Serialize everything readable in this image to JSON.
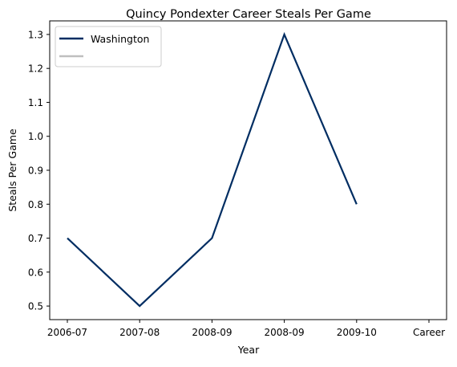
{
  "chart_data": {
    "type": "line",
    "title": "Quincy Pondexter Career Steals Per Game",
    "xlabel": "Year",
    "ylabel": "Steals Per Game",
    "categories": [
      "2006-07",
      "2007-08",
      "2008-09",
      "2008-09",
      "2009-10",
      "Career"
    ],
    "x": [
      0,
      1,
      2,
      3,
      4,
      5
    ],
    "x_tick_positions": [
      0,
      1,
      2,
      3,
      4,
      5
    ],
    "ylim": [
      0.46,
      1.34
    ],
    "yticks": [
      0.5,
      0.6,
      0.7,
      0.8,
      0.9,
      1.0,
      1.1,
      1.2,
      1.3
    ],
    "ytick_labels": [
      "0.5",
      "0.6",
      "0.7",
      "0.8",
      "0.9",
      "1.0",
      "1.1",
      "1.2",
      "1.3"
    ],
    "grid": false,
    "legend_position": "top-left",
    "series": [
      {
        "name": "Washington",
        "color": "#002D62",
        "points": [
          {
            "x": 0,
            "y": 0.7
          },
          {
            "x": 1,
            "y": 0.5
          },
          {
            "x": 2,
            "y": 0.7
          },
          {
            "x": 3,
            "y": 1.3
          },
          {
            "x": 4,
            "y": 0.8
          }
        ]
      }
    ],
    "legend": [
      {
        "label": "Washington",
        "color": "#002D62"
      },
      {
        "label": "",
        "color": "#BFBFBF"
      }
    ]
  }
}
